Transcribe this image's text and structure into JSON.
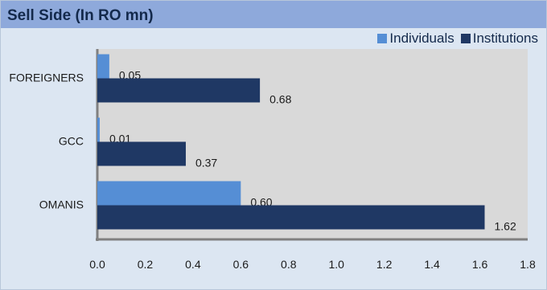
{
  "chart_data": {
    "type": "bar",
    "orientation": "horizontal",
    "title": "Sell Side (In RO mn)",
    "categories": [
      "FOREIGNERS",
      "GCC",
      "OMANIS"
    ],
    "series": [
      {
        "name": "Individuals",
        "values": [
          0.05,
          0.01,
          0.6
        ],
        "labels": [
          "0.05",
          "0.01",
          "0.60"
        ],
        "color": "#558ed5"
      },
      {
        "name": "Institutions",
        "values": [
          0.68,
          0.37,
          1.62
        ],
        "labels": [
          "0.68",
          "0.37",
          "1.62"
        ],
        "color": "#1f3864"
      }
    ],
    "xlim": [
      0,
      1.8
    ],
    "xticks": [
      "0.0",
      "0.2",
      "0.4",
      "0.6",
      "0.8",
      "1.0",
      "1.2",
      "1.4",
      "1.6",
      "1.8"
    ],
    "xlabel": "",
    "ylabel": "",
    "legend_position": "top-right",
    "grid": false,
    "plot_background": "#d9d9d9"
  }
}
